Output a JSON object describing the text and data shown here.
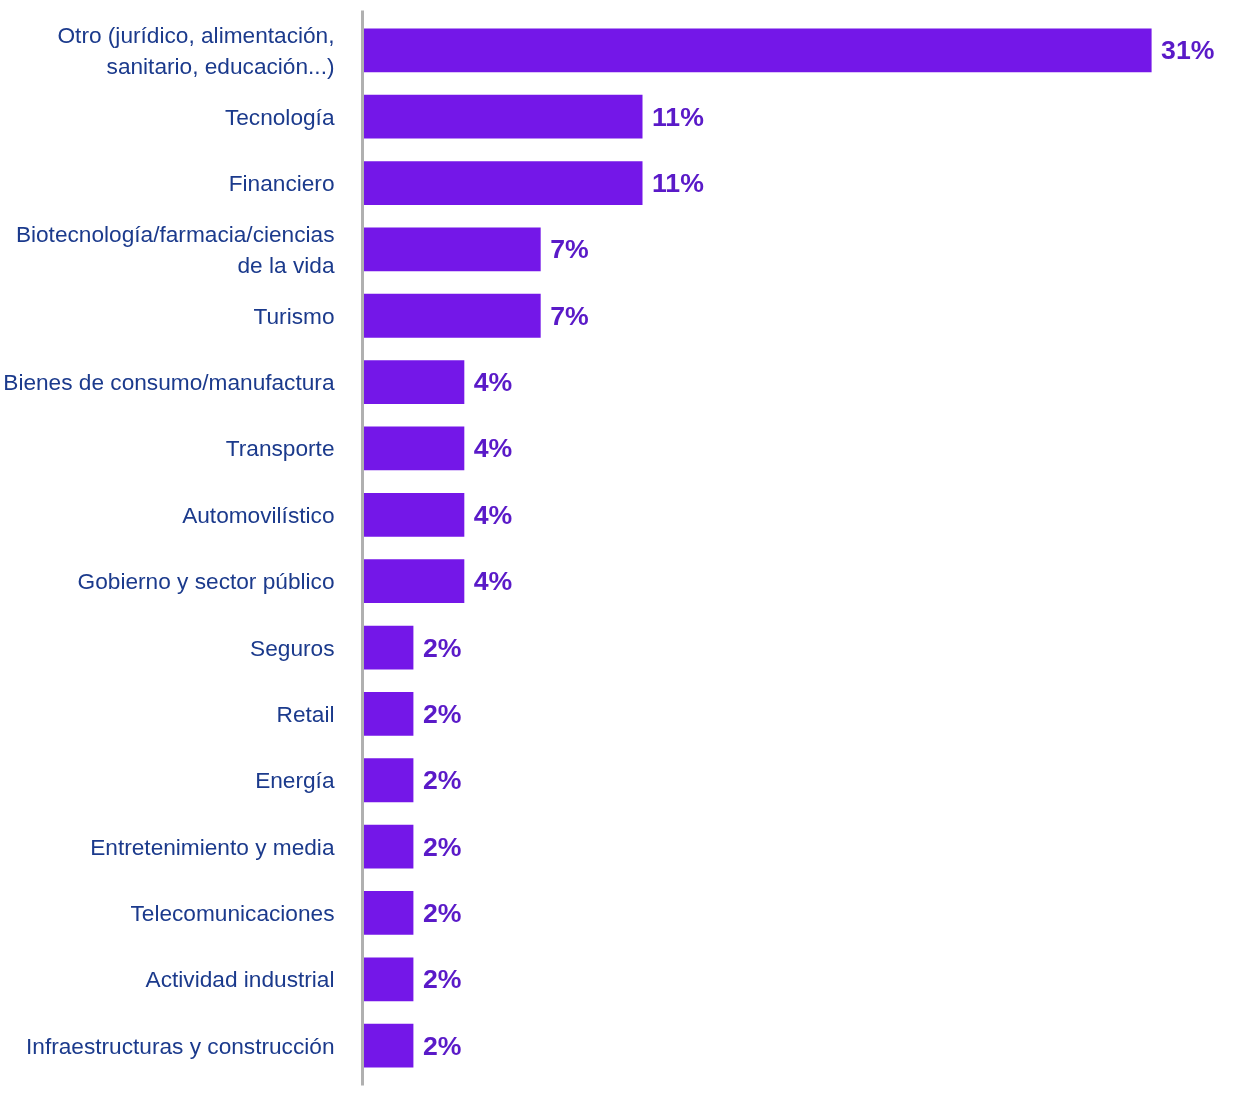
{
  "chart_data": {
    "type": "bar",
    "orientation": "horizontal",
    "categories": [
      "Otro (jurídico, alimentación,\nsanitario, educación...)",
      "Tecnología",
      "Financiero",
      "Biotecnología/farmacia/ciencias\nde la vida",
      "Turismo",
      "Bienes de consumo/manufactura",
      "Transporte",
      "Automovilístico",
      "Gobierno y sector público",
      "Seguros",
      "Retail",
      "Energía",
      "Entretenimiento y media",
      "Telecomunicaciones",
      "Actividad industrial",
      "Infraestructuras y construcción"
    ],
    "values": [
      31,
      11,
      11,
      7,
      7,
      4,
      4,
      4,
      4,
      2,
      2,
      2,
      2,
      2,
      2,
      2
    ],
    "value_labels": [
      "31%",
      "11%",
      "11%",
      "7%",
      "7%",
      "4%",
      "4%",
      "4%",
      "4%",
      "2%",
      "2%",
      "2%",
      "2%",
      "2%",
      "2%",
      "2%"
    ],
    "color": "#7417e8",
    "tick_labels": "y"
  }
}
